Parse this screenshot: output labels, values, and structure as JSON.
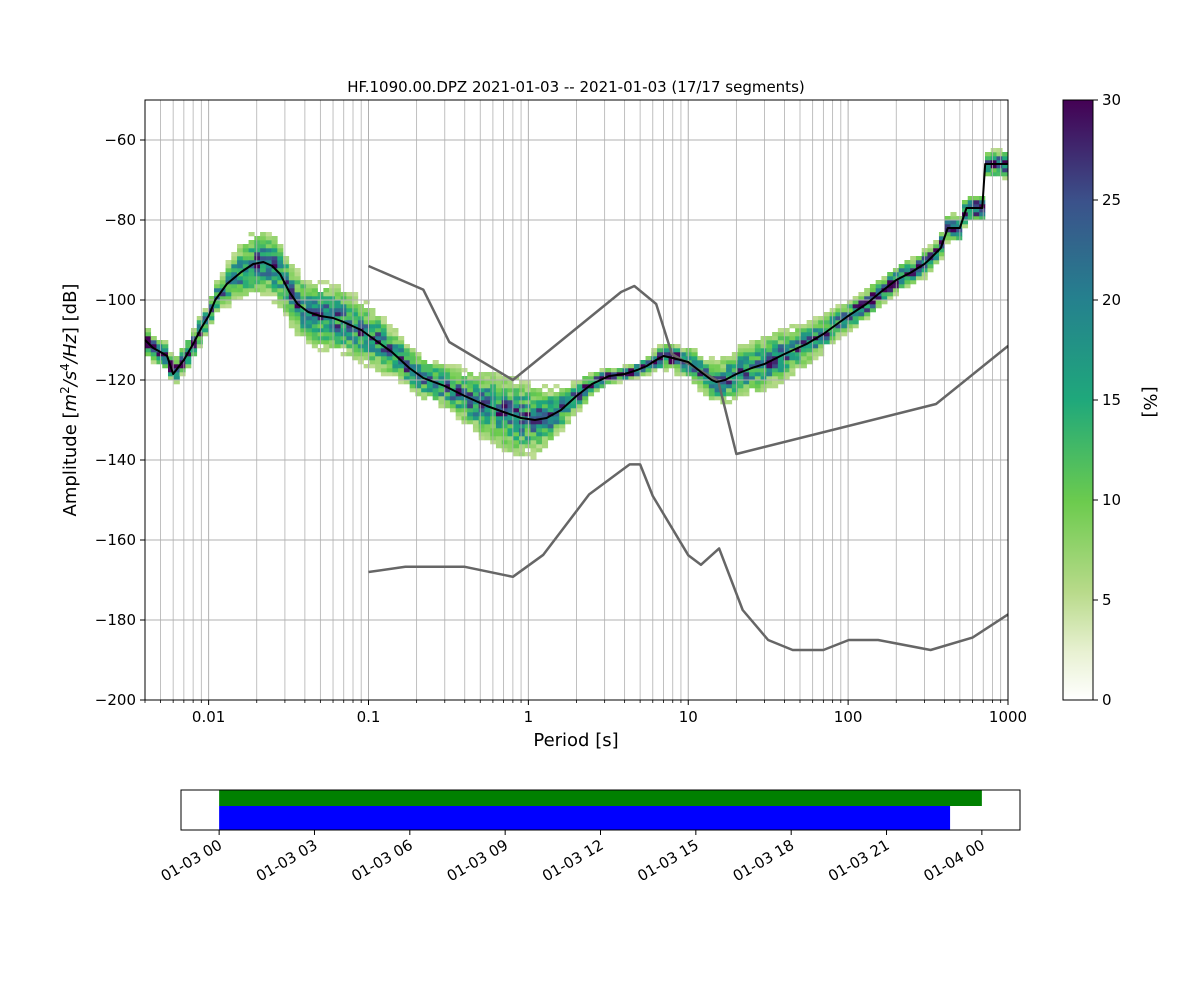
{
  "chart_data": [
    {
      "type": "heatmap",
      "title": "HF.1090.00.DPZ   2021-01-03 -- 2021-01-03  (17/17 segments)",
      "xlabel": "Period [s]",
      "ylabel": "Amplitude [$m^2/s^4/Hz$] [dB]",
      "ylabel_parts": [
        "Amplitude [",
        "m",
        "2",
        "/s",
        "4",
        "/Hz",
        "] [dB]"
      ],
      "x_scale": "log",
      "xlim": [
        0.004,
        1000
      ],
      "ylim": [
        -200,
        -50
      ],
      "x_ticks": [
        {
          "value": 0.01,
          "label": "0.01"
        },
        {
          "value": 0.1,
          "label": "0.1"
        },
        {
          "value": 1,
          "label": "1"
        },
        {
          "value": 10,
          "label": "10"
        },
        {
          "value": 100,
          "label": "100"
        },
        {
          "value": 1000,
          "label": "1000"
        }
      ],
      "y_ticks": [
        {
          "value": -60,
          "label": "−60"
        },
        {
          "value": -80,
          "label": "−80"
        },
        {
          "value": -100,
          "label": "−100"
        },
        {
          "value": -120,
          "label": "−120"
        },
        {
          "value": -140,
          "label": "−140"
        },
        {
          "value": -160,
          "label": "−160"
        },
        {
          "value": -180,
          "label": "−180"
        },
        {
          "value": -200,
          "label": "−200"
        }
      ],
      "grid": true,
      "colorbar": {
        "label": "[%]",
        "range": [
          0,
          30
        ],
        "colormap": "viridis_r over white",
        "ticks": [
          {
            "value": 0,
            "label": "0"
          },
          {
            "value": 5,
            "label": "5"
          },
          {
            "value": 10,
            "label": "10"
          },
          {
            "value": 15,
            "label": "15"
          },
          {
            "value": 20,
            "label": "20"
          },
          {
            "value": 25,
            "label": "25"
          },
          {
            "value": 30,
            "label": "30"
          }
        ]
      },
      "series": [
        {
          "role": "mode_line",
          "color": "#000000",
          "points": [
            [
              0.004,
              -110
            ],
            [
              0.0045,
              -112
            ],
            [
              0.005,
              -113
            ],
            [
              0.0055,
              -114
            ],
            [
              0.006,
              -118.5
            ],
            [
              0.007,
              -115
            ],
            [
              0.008,
              -111
            ],
            [
              0.009,
              -107
            ],
            [
              0.01,
              -104
            ],
            [
              0.011,
              -100
            ],
            [
              0.013,
              -96
            ],
            [
              0.016,
              -93
            ],
            [
              0.019,
              -91
            ],
            [
              0.022,
              -90.5
            ],
            [
              0.025,
              -91.5
            ],
            [
              0.028,
              -93.5
            ],
            [
              0.032,
              -98
            ],
            [
              0.036,
              -101
            ],
            [
              0.042,
              -103
            ],
            [
              0.05,
              -104
            ],
            [
              0.06,
              -104.5
            ],
            [
              0.07,
              -105.5
            ],
            [
              0.09,
              -107.5
            ],
            [
              0.11,
              -110
            ],
            [
              0.14,
              -113
            ],
            [
              0.18,
              -117
            ],
            [
              0.22,
              -119.5
            ],
            [
              0.3,
              -121.5
            ],
            [
              0.4,
              -124
            ],
            [
              0.55,
              -126.5
            ],
            [
              0.7,
              -128
            ],
            [
              0.9,
              -129.5
            ],
            [
              1.1,
              -130
            ],
            [
              1.3,
              -129.5
            ],
            [
              1.6,
              -127.5
            ],
            [
              2,
              -124
            ],
            [
              2.5,
              -121
            ],
            [
              3.2,
              -119
            ],
            [
              4,
              -118.5
            ],
            [
              4.8,
              -117.5
            ],
            [
              5.5,
              -116.5
            ],
            [
              6.3,
              -115
            ],
            [
              7,
              -114
            ],
            [
              8,
              -114.5
            ],
            [
              10,
              -115.5
            ],
            [
              12,
              -118
            ],
            [
              14,
              -120
            ],
            [
              15,
              -120.5
            ],
            [
              17,
              -120
            ],
            [
              20,
              -118.5
            ],
            [
              25,
              -117
            ],
            [
              30,
              -116
            ],
            [
              40,
              -113.5
            ],
            [
              55,
              -111
            ],
            [
              70,
              -108.5
            ],
            [
              100,
              -104
            ],
            [
              130,
              -101
            ],
            [
              160,
              -98
            ],
            [
              200,
              -95
            ],
            [
              250,
              -93
            ],
            [
              300,
              -91
            ],
            [
              320,
              -90
            ],
            [
              380,
              -87
            ],
            [
              420,
              -82
            ],
            [
              500,
              -82
            ],
            [
              550,
              -77
            ],
            [
              690,
              -77
            ],
            [
              720,
              -66
            ],
            [
              1000,
              -66
            ]
          ]
        },
        {
          "role": "noise_model_high",
          "color": "#666666",
          "points": [
            [
              0.1,
              -91.5
            ],
            [
              0.22,
              -97.4
            ],
            [
              0.32,
              -110.5
            ],
            [
              0.8,
              -120
            ],
            [
              3.8,
              -98
            ],
            [
              4.6,
              -96.5
            ],
            [
              6.3,
              -101
            ],
            [
              7.9,
              -113.5
            ],
            [
              15.4,
              -120.3
            ],
            [
              20,
              -138.5
            ],
            [
              354.8,
              -126
            ],
            [
              1000,
              -111.5
            ]
          ]
        },
        {
          "role": "noise_model_low",
          "color": "#666666",
          "points": [
            [
              0.1,
              -168
            ],
            [
              0.17,
              -166.7
            ],
            [
              0.4,
              -166.7
            ],
            [
              0.8,
              -169.2
            ],
            [
              1.24,
              -163.7
            ],
            [
              2.4,
              -148.6
            ],
            [
              4.3,
              -141.1
            ],
            [
              5,
              -141.1
            ],
            [
              6,
              -149
            ],
            [
              10,
              -163.8
            ],
            [
              12,
              -166.2
            ],
            [
              15.6,
              -162.1
            ],
            [
              21.9,
              -177.5
            ],
            [
              31.6,
              -185
            ],
            [
              45,
              -187.5
            ],
            [
              70,
              -187.5
            ],
            [
              101,
              -185
            ],
            [
              154,
              -185
            ],
            [
              328,
              -187.5
            ],
            [
              600,
              -184.4
            ],
            [
              1000,
              -178.6
            ]
          ]
        }
      ]
    },
    {
      "type": "timeline",
      "x_ticks": [
        "01-03 00",
        "01-03 03",
        "01-03 06",
        "01-03 09",
        "01-03 12",
        "01-03 15",
        "01-03 18",
        "01-03 21",
        "01-04 00"
      ],
      "x_tick_hours": [
        0,
        3,
        6,
        9,
        12,
        15,
        18,
        21,
        24
      ],
      "xlim_hours": [
        -1.2,
        25.2
      ],
      "series": [
        {
          "role": "data_coverage",
          "color": "#008000",
          "start_hour": 0,
          "end_hour": 24
        },
        {
          "role": "psd_segments",
          "color": "#0000ff",
          "start_hour": 0,
          "end_hour": 23
        }
      ]
    }
  ]
}
